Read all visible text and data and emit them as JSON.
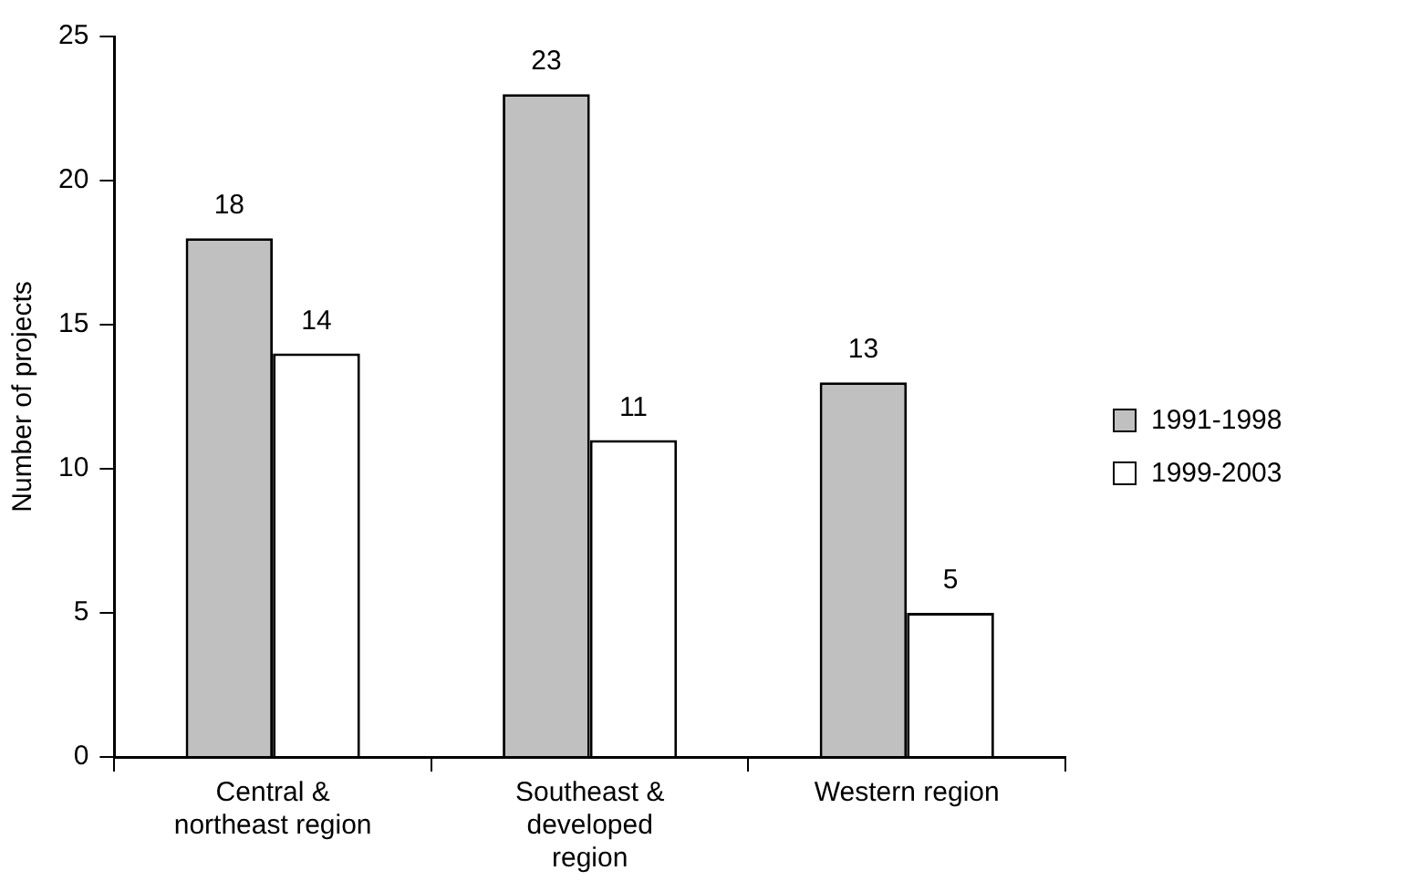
{
  "chart_data": {
    "type": "bar",
    "ylabel": "Number of projects",
    "categories": [
      "Central &\nnortheast region",
      "Southeast &\ndeveloped\nregion",
      "Western region"
    ],
    "series": [
      {
        "name": "1991-1998",
        "color": "#c0c0c0",
        "values": [
          18,
          23,
          13
        ]
      },
      {
        "name": "1999-2003",
        "color": "#ffffff",
        "values": [
          14,
          11,
          5
        ]
      }
    ],
    "ylim": [
      0,
      25
    ],
    "yticks": [
      0,
      5,
      10,
      15,
      20,
      25
    ],
    "grid": false,
    "legend": "right",
    "data_labels": true
  }
}
